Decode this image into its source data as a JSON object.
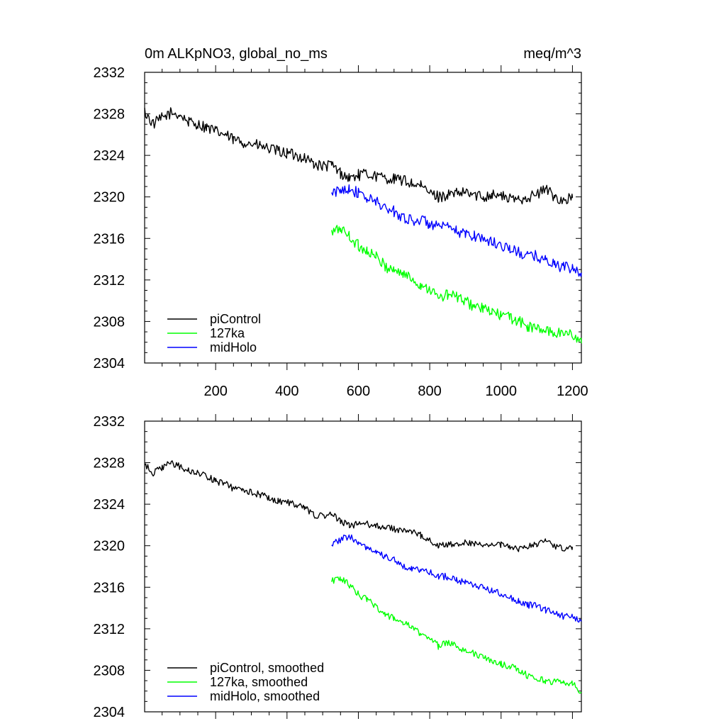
{
  "chart_data": [
    {
      "type": "line",
      "title_left": "0m ALKpNO3, global_no_ms",
      "title_right": "meq/m^3",
      "xlabel": "",
      "ylabel": "",
      "xlim": [
        1,
        1225
      ],
      "ylim": [
        2304,
        2332
      ],
      "xticks": [
        200,
        400,
        600,
        800,
        1000,
        1200
      ],
      "xtick_labels": [
        "200",
        "400",
        "600",
        "800",
        "1000",
        "1200"
      ],
      "yticks": [
        2304,
        2308,
        2312,
        2316,
        2320,
        2324,
        2328,
        2332
      ],
      "ytick_labels": [
        "2304",
        "2308",
        "2312",
        "2316",
        "2320",
        "2324",
        "2328",
        "2332"
      ],
      "legend_position": "bottom-left",
      "series": [
        {
          "name": "piControl",
          "color": "#000000",
          "x": [
            1,
            25,
            50,
            75,
            100,
            125,
            150,
            175,
            200,
            225,
            250,
            275,
            300,
            325,
            350,
            375,
            400,
            425,
            450,
            475,
            500,
            525,
            550,
            575,
            600,
            625,
            650,
            675,
            700,
            725,
            750,
            775,
            800,
            825,
            850,
            875,
            900,
            925,
            950,
            975,
            1000,
            1025,
            1050,
            1075,
            1100,
            1125,
            1150,
            1175,
            1200
          ],
          "y": [
            2328.2,
            2327.0,
            2327.6,
            2328.1,
            2327.9,
            2327.2,
            2327.0,
            2326.7,
            2326.3,
            2326.0,
            2325.5,
            2325.3,
            2325.1,
            2324.9,
            2324.6,
            2324.4,
            2324.2,
            2324.0,
            2323.8,
            2323.2,
            2322.9,
            2323.1,
            2322.3,
            2321.8,
            2322.1,
            2322.2,
            2322.0,
            2321.8,
            2321.7,
            2321.6,
            2321.3,
            2321.0,
            2320.4,
            2320.0,
            2320.2,
            2320.3,
            2320.4,
            2320.2,
            2320.0,
            2320.3,
            2320.1,
            2319.8,
            2319.8,
            2320.0,
            2320.2,
            2320.8,
            2320.0,
            2319.7,
            2319.9
          ]
        },
        {
          "name": "127ka",
          "color": "#00ff00",
          "x": [
            525,
            550,
            575,
            600,
            625,
            650,
            675,
            700,
            725,
            750,
            775,
            800,
            825,
            850,
            875,
            900,
            925,
            950,
            975,
            1000,
            1025,
            1050,
            1075,
            1100,
            1125,
            1150,
            1175,
            1200,
            1225
          ],
          "y": [
            2316.5,
            2317.0,
            2316.2,
            2315.3,
            2314.8,
            2314.2,
            2313.3,
            2313.0,
            2312.6,
            2312.1,
            2311.5,
            2311.2,
            2310.2,
            2310.6,
            2310.4,
            2309.9,
            2309.5,
            2309.2,
            2308.9,
            2308.6,
            2308.4,
            2308.0,
            2307.5,
            2307.3,
            2307.1,
            2306.9,
            2306.9,
            2306.8,
            2305.9
          ]
        },
        {
          "name": "midHolo",
          "color": "#0000ff",
          "x": [
            525,
            550,
            575,
            600,
            625,
            650,
            675,
            700,
            725,
            750,
            775,
            800,
            825,
            850,
            875,
            900,
            925,
            950,
            975,
            1000,
            1025,
            1050,
            1075,
            1100,
            1125,
            1150,
            1175,
            1200,
            1225
          ],
          "y": [
            2320.2,
            2320.7,
            2320.9,
            2320.3,
            2319.8,
            2319.6,
            2318.9,
            2318.6,
            2318.1,
            2317.7,
            2317.8,
            2317.4,
            2317.1,
            2317.0,
            2316.7,
            2316.4,
            2316.3,
            2316.0,
            2315.6,
            2315.4,
            2315.0,
            2314.6,
            2314.3,
            2314.3,
            2313.9,
            2313.5,
            2313.2,
            2313.1,
            2312.7
          ]
        }
      ]
    },
    {
      "type": "line",
      "title_left": "",
      "title_right": "",
      "xlabel": "",
      "ylabel": "",
      "xlim": [
        1,
        1225
      ],
      "ylim": [
        2304,
        2332
      ],
      "xticks": [
        200,
        400,
        600,
        800,
        1000,
        1200
      ],
      "xtick_labels": [],
      "yticks": [
        2304,
        2308,
        2312,
        2316,
        2320,
        2324,
        2328,
        2332
      ],
      "ytick_labels": [
        "2304",
        "2308",
        "2312",
        "2316",
        "2320",
        "2324",
        "2328",
        "2332"
      ],
      "legend_position": "bottom-left",
      "series": [
        {
          "name": "piControl, smoothed",
          "color": "#000000",
          "x": [
            1,
            25,
            50,
            75,
            100,
            125,
            150,
            175,
            200,
            225,
            250,
            275,
            300,
            325,
            350,
            375,
            400,
            425,
            450,
            475,
            500,
            525,
            550,
            575,
            600,
            625,
            650,
            675,
            700,
            725,
            750,
            775,
            800,
            825,
            850,
            875,
            900,
            925,
            950,
            975,
            1000,
            1025,
            1050,
            1075,
            1100,
            1125,
            1150,
            1175,
            1200
          ],
          "y": [
            2327.8,
            2327.0,
            2327.5,
            2328.0,
            2327.6,
            2327.2,
            2327.0,
            2326.7,
            2326.2,
            2326.0,
            2325.5,
            2325.3,
            2325.2,
            2324.9,
            2324.6,
            2324.3,
            2324.2,
            2324.0,
            2323.6,
            2323.0,
            2322.8,
            2323.0,
            2322.4,
            2321.9,
            2322.1,
            2322.1,
            2321.9,
            2321.8,
            2321.6,
            2321.5,
            2321.3,
            2321.0,
            2320.5,
            2320.0,
            2320.1,
            2320.2,
            2320.3,
            2320.2,
            2320.0,
            2320.2,
            2320.1,
            2319.8,
            2319.7,
            2319.9,
            2320.1,
            2320.6,
            2320.0,
            2319.8,
            2319.9
          ]
        },
        {
          "name": "127ka, smoothed",
          "color": "#00ff00",
          "x": [
            525,
            550,
            575,
            600,
            625,
            650,
            675,
            700,
            725,
            750,
            775,
            800,
            825,
            850,
            875,
            900,
            925,
            950,
            975,
            1000,
            1025,
            1050,
            1075,
            1100,
            1125,
            1150,
            1175,
            1200,
            1225
          ],
          "y": [
            2316.6,
            2316.9,
            2316.2,
            2315.3,
            2314.8,
            2314.2,
            2313.3,
            2313.0,
            2312.6,
            2312.1,
            2311.5,
            2311.2,
            2310.3,
            2310.7,
            2310.4,
            2309.9,
            2309.6,
            2309.2,
            2308.9,
            2308.6,
            2308.4,
            2308.0,
            2307.5,
            2307.2,
            2307.0,
            2306.9,
            2306.9,
            2306.7,
            2305.9
          ]
        },
        {
          "name": "midHolo, smoothed",
          "color": "#0000ff",
          "x": [
            525,
            550,
            575,
            600,
            625,
            650,
            675,
            700,
            725,
            750,
            775,
            800,
            825,
            850,
            875,
            900,
            925,
            950,
            975,
            1000,
            1025,
            1050,
            1075,
            1100,
            1125,
            1150,
            1175,
            1200,
            1225
          ],
          "y": [
            2320.2,
            2320.6,
            2320.9,
            2320.3,
            2319.8,
            2319.5,
            2318.9,
            2318.6,
            2318.1,
            2317.7,
            2317.7,
            2317.4,
            2317.1,
            2317.0,
            2316.7,
            2316.4,
            2316.2,
            2316.0,
            2315.6,
            2315.4,
            2315.0,
            2314.6,
            2314.3,
            2314.2,
            2313.8,
            2313.5,
            2313.2,
            2313.1,
            2312.8
          ]
        }
      ]
    }
  ]
}
